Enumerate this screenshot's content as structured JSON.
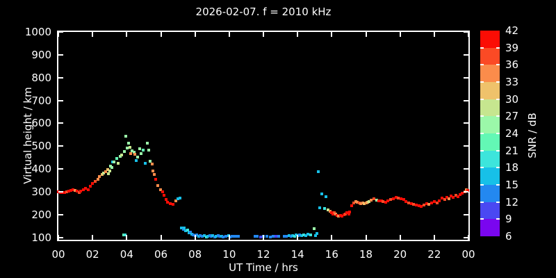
{
  "title": "2026-02-07. f = 2010 kHz",
  "axes": {
    "x_label": "UT Time / hrs",
    "y_label": "Virtual height / km",
    "x_tick_labels": [
      "00",
      "02",
      "04",
      "06",
      "08",
      "10",
      "12",
      "14",
      "16",
      "18",
      "20",
      "22",
      "00"
    ],
    "y_tick_labels": [
      "100",
      "200",
      "300",
      "400",
      "500",
      "600",
      "700",
      "800",
      "900",
      "1000"
    ]
  },
  "colorbar": {
    "label": "SNR / dB",
    "tick_labels": [
      "42",
      "39",
      "36",
      "33",
      "30",
      "27",
      "24",
      "21",
      "18",
      "15",
      "12",
      "9",
      "6"
    ],
    "snr_min": 6,
    "snr_max": 42,
    "snr_step": 3,
    "colors_low_to_high": [
      "#7a06ef",
      "#4a48f2",
      "#2388f0",
      "#17c0e8",
      "#3de5dc",
      "#63f8b5",
      "#9bf8a9",
      "#c6e68f",
      "#efc26b",
      "#fb8c4b",
      "#fb4a25",
      "#fb0d05"
    ]
  },
  "style": {
    "background": "#000000",
    "foreground": "#ffffff"
  },
  "chart_data": {
    "type": "scatter",
    "title": "2026-02-07. f = 2010 kHz",
    "xlabel": "UT Time / hrs",
    "ylabel": "Virtual height / km",
    "xlim": [
      0,
      24
    ],
    "ylim": [
      90,
      1000
    ],
    "grid": false,
    "colorbar_label": "SNR / dB",
    "colorbar_range": [
      6,
      42
    ],
    "points_hr_km_snr": [
      [
        0.0,
        300,
        41
      ],
      [
        0.12,
        298,
        41
      ],
      [
        0.24,
        296,
        41
      ],
      [
        0.36,
        297,
        41
      ],
      [
        0.48,
        299,
        37
      ],
      [
        0.6,
        302,
        41
      ],
      [
        0.72,
        305,
        41
      ],
      [
        0.84,
        308,
        41
      ],
      [
        0.96,
        306,
        34
      ],
      [
        1.08,
        302,
        41
      ],
      [
        1.2,
        298,
        37
      ],
      [
        1.32,
        303,
        41
      ],
      [
        1.45,
        309,
        41
      ],
      [
        1.6,
        315,
        41
      ],
      [
        1.74,
        309,
        41
      ],
      [
        1.86,
        324,
        41
      ],
      [
        2.0,
        336,
        41
      ],
      [
        2.14,
        345,
        37
      ],
      [
        2.3,
        355,
        34
      ],
      [
        2.42,
        367,
        34
      ],
      [
        2.55,
        376,
        31
      ],
      [
        2.65,
        382,
        28
      ],
      [
        2.75,
        388,
        34
      ],
      [
        2.87,
        397,
        31
      ],
      [
        2.91,
        379,
        28
      ],
      [
        3.0,
        391,
        28
      ],
      [
        3.07,
        412,
        25
      ],
      [
        3.15,
        406,
        25
      ],
      [
        3.18,
        430,
        16
      ],
      [
        3.27,
        430,
        25
      ],
      [
        3.4,
        445,
        22
      ],
      [
        3.51,
        424,
        28
      ],
      [
        3.6,
        454,
        25
      ],
      [
        3.72,
        460,
        28
      ],
      [
        3.82,
        110,
        22
      ],
      [
        3.88,
        476,
        25
      ],
      [
        3.92,
        110,
        19
      ],
      [
        3.96,
        542,
        25
      ],
      [
        4.04,
        491,
        25
      ],
      [
        4.12,
        512,
        25
      ],
      [
        4.2,
        494,
        28
      ],
      [
        4.24,
        467,
        34
      ],
      [
        4.32,
        479,
        25
      ],
      [
        4.44,
        473,
        25
      ],
      [
        4.48,
        464,
        34
      ],
      [
        4.56,
        436,
        16
      ],
      [
        4.65,
        451,
        25
      ],
      [
        4.77,
        488,
        25
      ],
      [
        4.85,
        467,
        25
      ],
      [
        4.95,
        482,
        22
      ],
      [
        5.09,
        424,
        16
      ],
      [
        5.2,
        512,
        25
      ],
      [
        5.3,
        482,
        25
      ],
      [
        5.37,
        433,
        25
      ],
      [
        5.5,
        421,
        34
      ],
      [
        5.54,
        391,
        34
      ],
      [
        5.62,
        376,
        34
      ],
      [
        5.7,
        355,
        41
      ],
      [
        5.82,
        327,
        34
      ],
      [
        5.98,
        309,
        34
      ],
      [
        6.1,
        300,
        41
      ],
      [
        6.18,
        285,
        41
      ],
      [
        6.3,
        267,
        41
      ],
      [
        6.38,
        255,
        41
      ],
      [
        6.55,
        248,
        41
      ],
      [
        6.71,
        245,
        41
      ],
      [
        6.87,
        261,
        34
      ],
      [
        6.99,
        270,
        16
      ],
      [
        7.11,
        273,
        16
      ],
      [
        7.19,
        142,
        16
      ],
      [
        7.31,
        136,
        13
      ],
      [
        7.37,
        142,
        16
      ],
      [
        7.45,
        130,
        16
      ],
      [
        7.55,
        133,
        19
      ],
      [
        7.63,
        121,
        16
      ],
      [
        7.72,
        124,
        13
      ],
      [
        7.8,
        115,
        16
      ],
      [
        7.9,
        112,
        13
      ],
      [
        8.0,
        109,
        13
      ],
      [
        8.1,
        112,
        13
      ],
      [
        8.2,
        106,
        16
      ],
      [
        8.3,
        108,
        13
      ],
      [
        8.4,
        104,
        13
      ],
      [
        8.55,
        107,
        16
      ],
      [
        8.65,
        103,
        19
      ],
      [
        8.75,
        106,
        16
      ],
      [
        8.85,
        109,
        13
      ],
      [
        8.95,
        104,
        13
      ],
      [
        9.05,
        107,
        16
      ],
      [
        9.15,
        103,
        13
      ],
      [
        9.25,
        105,
        16
      ],
      [
        9.35,
        108,
        13
      ],
      [
        9.45,
        104,
        13
      ],
      [
        9.55,
        106,
        16
      ],
      [
        9.65,
        103,
        13
      ],
      [
        9.8,
        105,
        13
      ],
      [
        9.95,
        107,
        16
      ],
      [
        10.05,
        103,
        13
      ],
      [
        10.15,
        105,
        13
      ],
      [
        10.3,
        104,
        13
      ],
      [
        10.45,
        106,
        13
      ],
      [
        10.55,
        104,
        13
      ],
      [
        11.5,
        104,
        13
      ],
      [
        11.62,
        104,
        13
      ],
      [
        11.85,
        103,
        10
      ],
      [
        12.0,
        105,
        13
      ],
      [
        12.2,
        104,
        13
      ],
      [
        12.4,
        103,
        13
      ],
      [
        12.55,
        105,
        13
      ],
      [
        12.75,
        104,
        10
      ],
      [
        12.9,
        104,
        13
      ],
      [
        13.2,
        106,
        13
      ],
      [
        13.35,
        104,
        13
      ],
      [
        13.5,
        107,
        16
      ],
      [
        13.62,
        105,
        13
      ],
      [
        13.72,
        108,
        16
      ],
      [
        13.82,
        106,
        19
      ],
      [
        13.92,
        110,
        16
      ],
      [
        14.02,
        107,
        16
      ],
      [
        14.12,
        111,
        13
      ],
      [
        14.22,
        108,
        16
      ],
      [
        14.35,
        112,
        19
      ],
      [
        14.5,
        109,
        16
      ],
      [
        14.6,
        115,
        16
      ],
      [
        14.75,
        111,
        19
      ],
      [
        14.95,
        140,
        25
      ],
      [
        15.05,
        108,
        16
      ],
      [
        15.12,
        118,
        16
      ],
      [
        15.23,
        388,
        16
      ],
      [
        15.31,
        230,
        16
      ],
      [
        15.43,
        291,
        16
      ],
      [
        15.56,
        227,
        19
      ],
      [
        15.68,
        279,
        16
      ],
      [
        15.8,
        221,
        28
      ],
      [
        15.92,
        215,
        34
      ],
      [
        16.0,
        209,
        41
      ],
      [
        16.08,
        203,
        41
      ],
      [
        16.16,
        209,
        37
      ],
      [
        16.24,
        203,
        34
      ],
      [
        16.32,
        197,
        41
      ],
      [
        16.4,
        194,
        34
      ],
      [
        16.5,
        197,
        41
      ],
      [
        16.6,
        194,
        41
      ],
      [
        16.7,
        200,
        41
      ],
      [
        16.8,
        203,
        37
      ],
      [
        16.9,
        209,
        41
      ],
      [
        17.0,
        203,
        41
      ],
      [
        17.05,
        212,
        41
      ],
      [
        17.17,
        239,
        41
      ],
      [
        17.3,
        252,
        37
      ],
      [
        17.4,
        258,
        34
      ],
      [
        17.5,
        255,
        34
      ],
      [
        17.6,
        252,
        37
      ],
      [
        17.7,
        249,
        34
      ],
      [
        17.8,
        252,
        34
      ],
      [
        17.9,
        249,
        31
      ],
      [
        18.0,
        252,
        34
      ],
      [
        18.1,
        255,
        31
      ],
      [
        18.18,
        258,
        28
      ],
      [
        18.3,
        264,
        34
      ],
      [
        18.45,
        270,
        37
      ],
      [
        18.63,
        264,
        25
      ],
      [
        18.75,
        261,
        41
      ],
      [
        18.9,
        261,
        41
      ],
      [
        19.0,
        258,
        37
      ],
      [
        19.15,
        255,
        41
      ],
      [
        19.3,
        261,
        41
      ],
      [
        19.45,
        267,
        37
      ],
      [
        19.6,
        270,
        41
      ],
      [
        19.75,
        276,
        41
      ],
      [
        19.9,
        273,
        37
      ],
      [
        20.05,
        270,
        41
      ],
      [
        20.2,
        267,
        41
      ],
      [
        20.35,
        258,
        41
      ],
      [
        20.5,
        252,
        37
      ],
      [
        20.65,
        248,
        41
      ],
      [
        20.8,
        245,
        37
      ],
      [
        20.95,
        242,
        41
      ],
      [
        21.1,
        239,
        41
      ],
      [
        21.25,
        236,
        41
      ],
      [
        21.4,
        242,
        37
      ],
      [
        21.55,
        248,
        41
      ],
      [
        21.7,
        245,
        34
      ],
      [
        21.85,
        252,
        41
      ],
      [
        22.0,
        258,
        41
      ],
      [
        22.15,
        252,
        37
      ],
      [
        22.3,
        261,
        41
      ],
      [
        22.45,
        273,
        41
      ],
      [
        22.6,
        267,
        37
      ],
      [
        22.72,
        276,
        41
      ],
      [
        22.85,
        270,
        34
      ],
      [
        23.0,
        282,
        41
      ],
      [
        23.1,
        276,
        41
      ],
      [
        23.25,
        285,
        37
      ],
      [
        23.4,
        279,
        41
      ],
      [
        23.5,
        288,
        41
      ],
      [
        23.65,
        294,
        41
      ],
      [
        23.78,
        300,
        37
      ],
      [
        23.88,
        309,
        34
      ],
      [
        23.97,
        305,
        41
      ]
    ]
  }
}
